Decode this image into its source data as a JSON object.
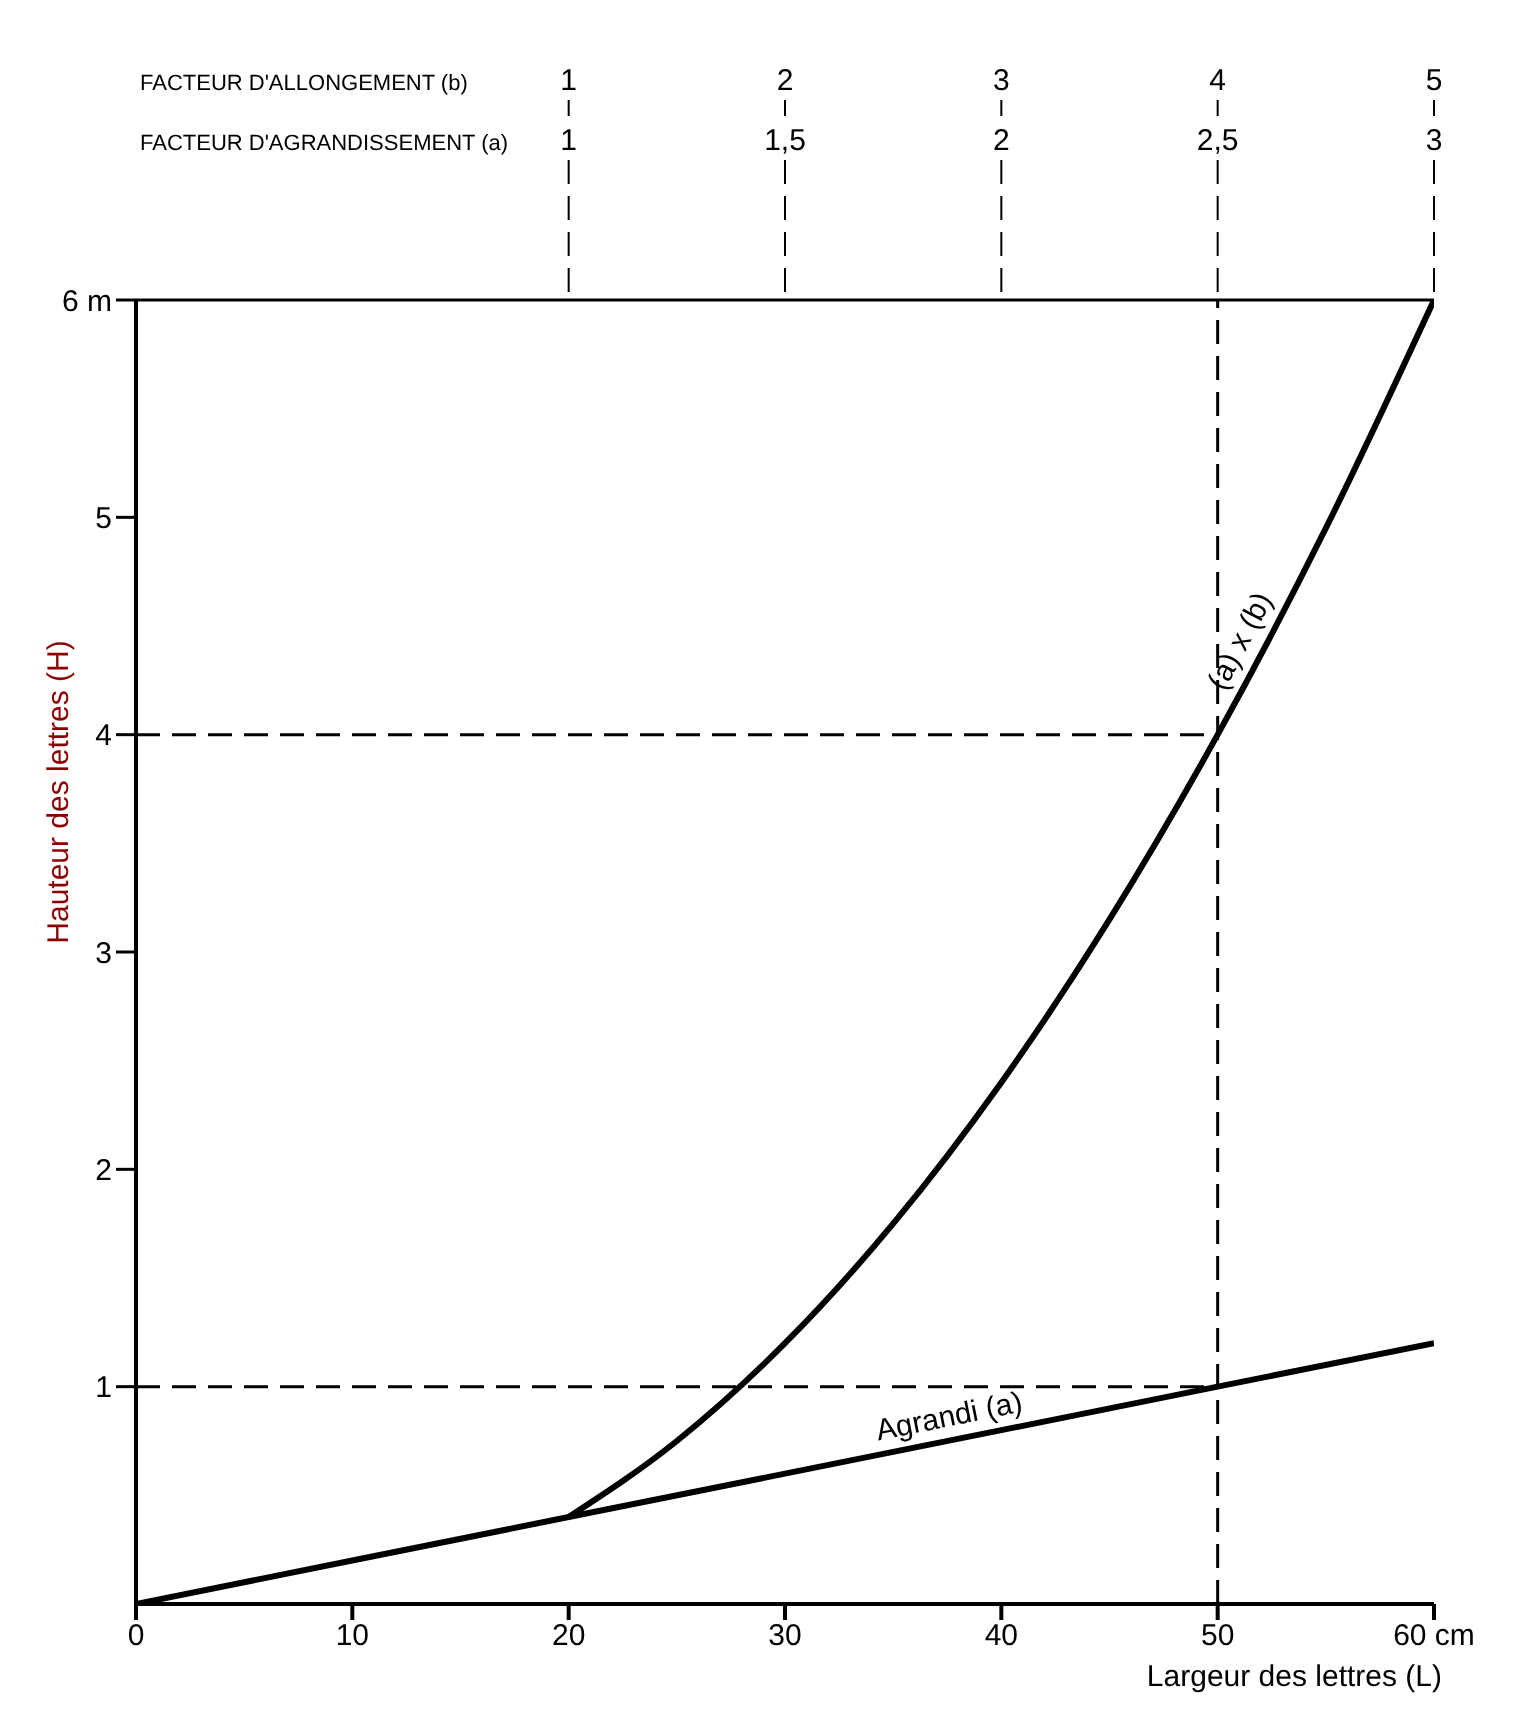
{
  "chart_data": {
    "type": "line",
    "xlabel": "Largeur des lettres (L)",
    "ylabel": "Hauteur des lettres (H)",
    "x2label": "FACTEUR D'AGRANDISSEMENT (a)",
    "xlim": [
      0,
      60
    ],
    "xticks": [
      0,
      10,
      20,
      30,
      40,
      50,
      {
        "value": 60,
        "label": "60 cm"
      }
    ],
    "ylim": [
      0,
      6
    ],
    "yticks": [
      1,
      2,
      3,
      4,
      5,
      {
        "value": 6,
        "label": "6 m"
      }
    ],
    "x2lim": [
      0,
      3
    ],
    "x2ticks": [
      1,
      {
        "value": 1.5,
        "label": "1,5"
      },
      2,
      {
        "value": 2.5,
        "label": "2,5"
      },
      3
    ],
    "annotations": [
      "FACTEUR D'ALLONGEMENT (b)",
      {
        "text": "1",
        "x": 20
      },
      {
        "text": "2",
        "x": 30
      },
      {
        "text": "3",
        "x": 40
      },
      {
        "text": "4",
        "x": 50
      },
      {
        "text": "5",
        "x": 60
      }
    ],
    "grid": false,
    "marker": "none",
    "line_style": "solid",
    "series": [
      {
        "name": "Agrandi (a)",
        "color": "#000000",
        "x": [
          0,
          20,
          40,
          60
        ],
        "values": [
          0,
          0.4,
          0.8,
          1.2
        ]
      },
      {
        "name": "(a) x (b)",
        "color": "#000000",
        "x": [
          20,
          25,
          30,
          35,
          40,
          45,
          50,
          55,
          60
        ],
        "values": [
          0.4,
          0.75,
          1.2,
          1.75,
          2.4,
          3.15,
          4,
          4.95,
          6
        ]
      }
    ],
    "ref_lines": [
      {
        "axis": "x",
        "value": 50,
        "line_style": "dashed",
        "color": "#000000"
      },
      {
        "axis": "y",
        "value": 4,
        "line_style": "dashed",
        "color": "#000000"
      },
      {
        "axis": "y",
        "value": 1,
        "line_style": "dashed",
        "color": "#000000"
      }
    ]
  }
}
